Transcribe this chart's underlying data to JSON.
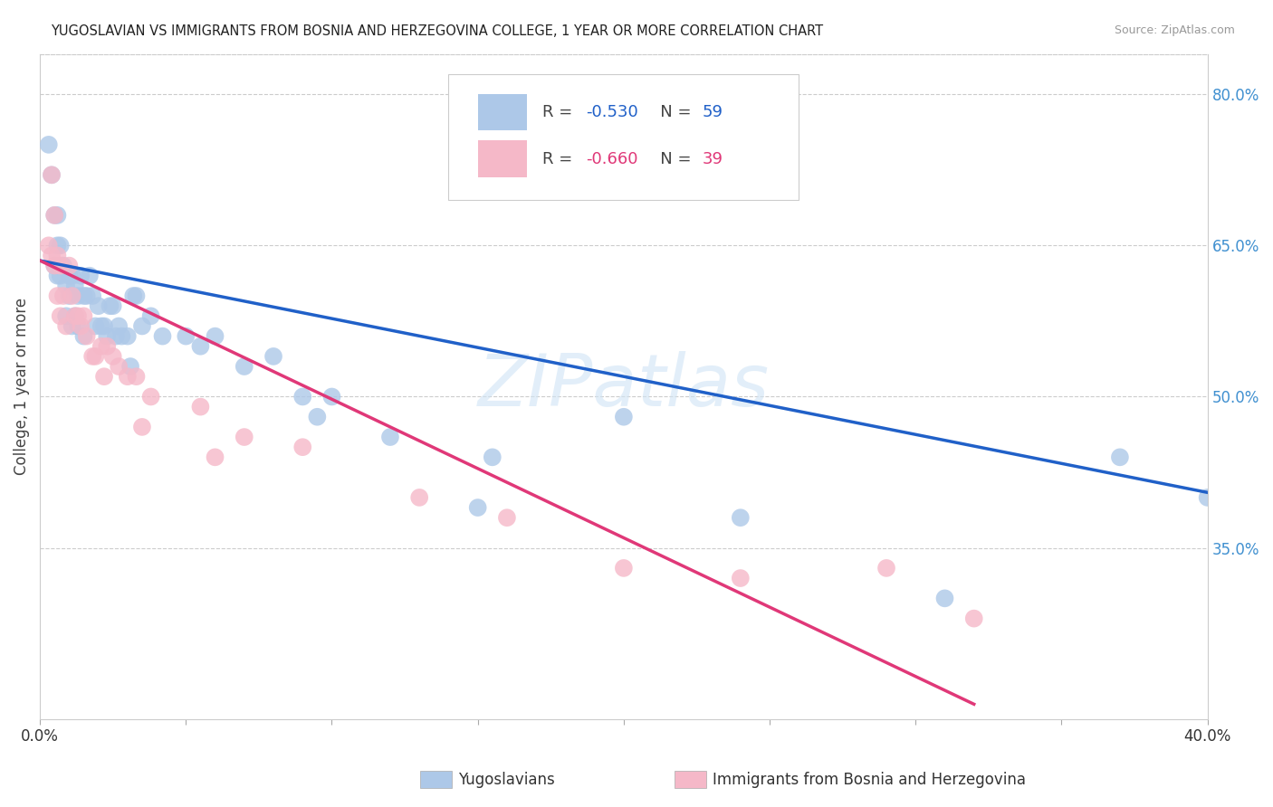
{
  "title": "YUGOSLAVIAN VS IMMIGRANTS FROM BOSNIA AND HERZEGOVINA COLLEGE, 1 YEAR OR MORE CORRELATION CHART",
  "source": "Source: ZipAtlas.com",
  "ylabel": "College, 1 year or more",
  "legend_label1": "Yugoslavians",
  "legend_label2": "Immigrants from Bosnia and Herzegovina",
  "R1": -0.53,
  "N1": 59,
  "R2": -0.66,
  "N2": 39,
  "color1": "#adc8e8",
  "color2": "#f5b8c8",
  "line_color1": "#2060c8",
  "line_color2": "#e03878",
  "text_color_rv": "#3070c8",
  "text_color_dark": "#444444",
  "xlim": [
    0.0,
    0.4
  ],
  "ylim": [
    0.18,
    0.84
  ],
  "right_yticks": [
    0.35,
    0.5,
    0.65,
    0.8
  ],
  "right_ytick_labels": [
    "35.0%",
    "50.0%",
    "65.0%",
    "80.0%"
  ],
  "watermark_text": "ZIPatlas",
  "line1_x0": 0.0,
  "line1_y0": 0.635,
  "line1_x1": 0.4,
  "line1_y1": 0.405,
  "line2_x0": 0.0,
  "line2_y0": 0.635,
  "line2_x1": 0.32,
  "line2_y1": 0.195,
  "blue_x": [
    0.003,
    0.004,
    0.005,
    0.005,
    0.006,
    0.006,
    0.006,
    0.007,
    0.007,
    0.008,
    0.009,
    0.009,
    0.01,
    0.01,
    0.011,
    0.011,
    0.012,
    0.012,
    0.013,
    0.013,
    0.014,
    0.015,
    0.015,
    0.016,
    0.017,
    0.018,
    0.019,
    0.02,
    0.021,
    0.022,
    0.023,
    0.024,
    0.025,
    0.026,
    0.027,
    0.028,
    0.03,
    0.031,
    0.032,
    0.033,
    0.035,
    0.038,
    0.042,
    0.05,
    0.055,
    0.06,
    0.07,
    0.08,
    0.09,
    0.095,
    0.1,
    0.12,
    0.15,
    0.155,
    0.2,
    0.24,
    0.31,
    0.37,
    0.4
  ],
  "blue_y": [
    0.75,
    0.72,
    0.68,
    0.63,
    0.68,
    0.65,
    0.62,
    0.65,
    0.62,
    0.63,
    0.61,
    0.58,
    0.62,
    0.6,
    0.62,
    0.57,
    0.61,
    0.58,
    0.6,
    0.57,
    0.62,
    0.6,
    0.56,
    0.6,
    0.62,
    0.6,
    0.57,
    0.59,
    0.57,
    0.57,
    0.56,
    0.59,
    0.59,
    0.56,
    0.57,
    0.56,
    0.56,
    0.53,
    0.6,
    0.6,
    0.57,
    0.58,
    0.56,
    0.56,
    0.55,
    0.56,
    0.53,
    0.54,
    0.5,
    0.48,
    0.5,
    0.46,
    0.39,
    0.44,
    0.48,
    0.38,
    0.3,
    0.44,
    0.4
  ],
  "pink_x": [
    0.003,
    0.004,
    0.004,
    0.005,
    0.005,
    0.006,
    0.006,
    0.007,
    0.007,
    0.008,
    0.009,
    0.01,
    0.011,
    0.012,
    0.013,
    0.014,
    0.015,
    0.016,
    0.018,
    0.019,
    0.021,
    0.022,
    0.023,
    0.025,
    0.027,
    0.03,
    0.033,
    0.035,
    0.038,
    0.055,
    0.06,
    0.07,
    0.09,
    0.13,
    0.16,
    0.2,
    0.24,
    0.29,
    0.32
  ],
  "pink_y": [
    0.65,
    0.64,
    0.72,
    0.63,
    0.68,
    0.64,
    0.6,
    0.63,
    0.58,
    0.6,
    0.57,
    0.63,
    0.6,
    0.58,
    0.58,
    0.57,
    0.58,
    0.56,
    0.54,
    0.54,
    0.55,
    0.52,
    0.55,
    0.54,
    0.53,
    0.52,
    0.52,
    0.47,
    0.5,
    0.49,
    0.44,
    0.46,
    0.45,
    0.4,
    0.38,
    0.33,
    0.32,
    0.33,
    0.28
  ]
}
